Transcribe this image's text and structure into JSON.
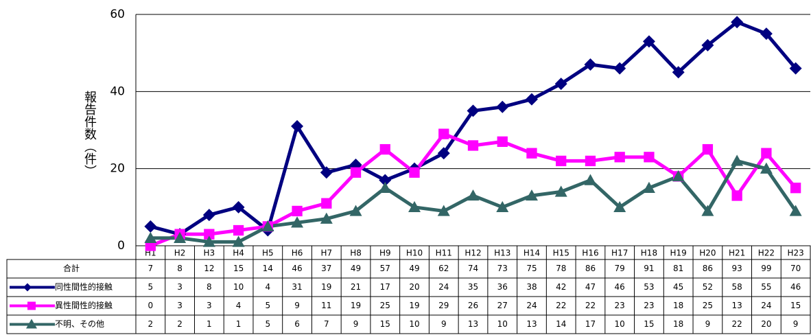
{
  "chart_data": {
    "type": "line",
    "y_axis_label": "報告件数（件）",
    "categories": [
      "H1",
      "H2",
      "H3",
      "H4",
      "H5",
      "H6",
      "H7",
      "H8",
      "H9",
      "H10",
      "H11",
      "H12",
      "H13",
      "H14",
      "H15",
      "H16",
      "H17",
      "H18",
      "H19",
      "H20",
      "H21",
      "H22",
      "H23"
    ],
    "ylim": [
      0,
      60
    ],
    "yticks": [
      0,
      20,
      40,
      60
    ],
    "grid": true,
    "total": {
      "name": "合計",
      "values": [
        7,
        8,
        12,
        15,
        14,
        46,
        37,
        49,
        57,
        49,
        62,
        74,
        73,
        75,
        78,
        86,
        79,
        91,
        81,
        86,
        93,
        99,
        70
      ]
    },
    "series": [
      {
        "name": "同性間性的接触",
        "color": "#000080",
        "marker": "diamond",
        "values": [
          5,
          3,
          8,
          10,
          4,
          31,
          19,
          21,
          17,
          20,
          24,
          35,
          36,
          38,
          42,
          47,
          46,
          53,
          45,
          52,
          58,
          55,
          46
        ]
      },
      {
        "name": "異性間性的接触",
        "color": "#ff00ff",
        "marker": "square",
        "values": [
          0,
          3,
          3,
          4,
          5,
          9,
          11,
          19,
          25,
          19,
          29,
          26,
          27,
          24,
          22,
          22,
          23,
          23,
          18,
          25,
          13,
          24,
          15
        ]
      },
      {
        "name": "不明、その他",
        "color": "#336666",
        "marker": "triangle",
        "values": [
          2,
          2,
          1,
          1,
          5,
          6,
          7,
          9,
          15,
          10,
          9,
          13,
          10,
          13,
          14,
          17,
          10,
          15,
          18,
          9,
          22,
          20,
          9
        ]
      }
    ]
  }
}
